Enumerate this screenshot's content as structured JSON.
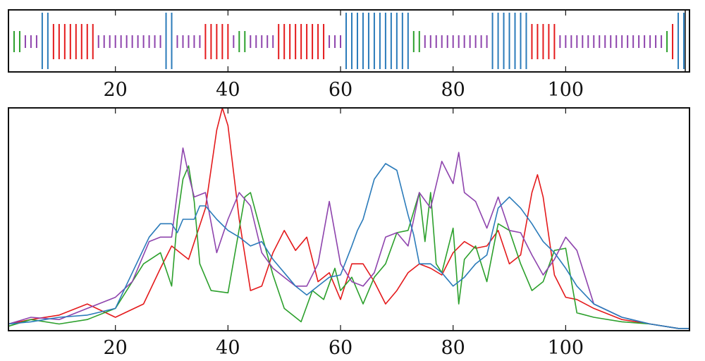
{
  "chart_data": [
    {
      "type": "heatmap",
      "xlim": [
        1,
        122
      ],
      "xticks": [
        20,
        40,
        60,
        80,
        100
      ],
      "xtick_labels": [
        "20",
        "40",
        "60",
        "80",
        "100"
      ],
      "colors": {
        "green": "#2ca02c",
        "purple": "#8e44ad",
        "blue": "#2b7bba",
        "red": "#e41a1c"
      },
      "segments": [
        {
          "start": 2,
          "end": 3,
          "class": "green"
        },
        {
          "start": 4,
          "end": 6,
          "class": "purple"
        },
        {
          "start": 7,
          "end": 8,
          "class": "blue"
        },
        {
          "start": 9,
          "end": 16,
          "class": "red"
        },
        {
          "start": 17,
          "end": 28,
          "class": "purple"
        },
        {
          "start": 29,
          "end": 30,
          "class": "blue"
        },
        {
          "start": 31,
          "end": 35,
          "class": "purple"
        },
        {
          "start": 36,
          "end": 40,
          "class": "red"
        },
        {
          "start": 41,
          "end": 41,
          "class": "purple"
        },
        {
          "start": 42,
          "end": 43,
          "class": "green"
        },
        {
          "start": 44,
          "end": 48,
          "class": "purple"
        },
        {
          "start": 49,
          "end": 57,
          "class": "red"
        },
        {
          "start": 58,
          "end": 60,
          "class": "purple"
        },
        {
          "start": 61,
          "end": 72,
          "class": "blue"
        },
        {
          "start": 73,
          "end": 74,
          "class": "green"
        },
        {
          "start": 75,
          "end": 86,
          "class": "purple"
        },
        {
          "start": 87,
          "end": 93,
          "class": "blue"
        },
        {
          "start": 94,
          "end": 98,
          "class": "red"
        },
        {
          "start": 99,
          "end": 117,
          "class": "purple"
        },
        {
          "start": 118,
          "end": 118,
          "class": "green"
        },
        {
          "start": 119,
          "end": 119,
          "class": "red"
        },
        {
          "start": 120,
          "end": 122,
          "class": "blue"
        }
      ],
      "boundary_marker_x": 121
    },
    {
      "type": "line",
      "xlim": [
        1,
        122
      ],
      "ylim": [
        0,
        1
      ],
      "xticks": [
        20,
        40,
        60,
        80,
        100
      ],
      "xtick_labels": [
        "20",
        "40",
        "60",
        "80",
        "100"
      ],
      "series": [
        {
          "color": "#e41a1c",
          "x": [
            1,
            5,
            10,
            15,
            20,
            25,
            28,
            30,
            33,
            36,
            38,
            39,
            40,
            42,
            44,
            46,
            48,
            50,
            52,
            54,
            56,
            58,
            60,
            62,
            64,
            66,
            68,
            70,
            72,
            74,
            76,
            78,
            80,
            82,
            84,
            86,
            88,
            90,
            92,
            94,
            95,
            96,
            98,
            100,
            102,
            105,
            110,
            115,
            120,
            122
          ],
          "y": [
            0.03,
            0.05,
            0.07,
            0.12,
            0.06,
            0.12,
            0.28,
            0.38,
            0.32,
            0.55,
            0.9,
            1.0,
            0.92,
            0.5,
            0.18,
            0.2,
            0.35,
            0.45,
            0.36,
            0.42,
            0.22,
            0.26,
            0.14,
            0.3,
            0.3,
            0.22,
            0.12,
            0.18,
            0.26,
            0.3,
            0.28,
            0.25,
            0.35,
            0.4,
            0.37,
            0.38,
            0.45,
            0.3,
            0.34,
            0.62,
            0.7,
            0.6,
            0.25,
            0.15,
            0.14,
            0.1,
            0.05,
            0.03,
            0.01,
            0.01
          ]
        },
        {
          "color": "#2ca02c",
          "x": [
            1,
            5,
            10,
            15,
            20,
            25,
            28,
            30,
            31,
            32,
            33,
            34,
            35,
            37,
            40,
            43,
            44,
            46,
            48,
            50,
            53,
            55,
            57,
            59,
            60,
            62,
            64,
            66,
            68,
            70,
            72,
            74,
            75,
            76,
            77,
            78,
            80,
            81,
            82,
            84,
            86,
            88,
            90,
            92,
            94,
            96,
            98,
            100,
            102,
            105,
            110,
            115,
            120,
            122
          ],
          "y": [
            0.02,
            0.05,
            0.03,
            0.05,
            0.1,
            0.3,
            0.35,
            0.2,
            0.5,
            0.68,
            0.74,
            0.58,
            0.3,
            0.18,
            0.17,
            0.6,
            0.62,
            0.43,
            0.25,
            0.1,
            0.04,
            0.18,
            0.14,
            0.28,
            0.18,
            0.24,
            0.12,
            0.24,
            0.3,
            0.44,
            0.45,
            0.62,
            0.4,
            0.62,
            0.3,
            0.26,
            0.46,
            0.12,
            0.32,
            0.38,
            0.22,
            0.48,
            0.45,
            0.3,
            0.18,
            0.22,
            0.36,
            0.37,
            0.08,
            0.06,
            0.04,
            0.03,
            0.01,
            0.01
          ]
        },
        {
          "color": "#8e44ad",
          "x": [
            1,
            5,
            10,
            15,
            20,
            23,
            26,
            28,
            30,
            32,
            33,
            34,
            36,
            38,
            40,
            42,
            44,
            46,
            48,
            50,
            52,
            54,
            56,
            58,
            60,
            62,
            64,
            66,
            68,
            70,
            72,
            74,
            76,
            78,
            80,
            81,
            82,
            84,
            86,
            88,
            90,
            92,
            94,
            96,
            98,
            100,
            102,
            105,
            110,
            115,
            120,
            122
          ],
          "y": [
            0.03,
            0.06,
            0.05,
            0.1,
            0.15,
            0.22,
            0.4,
            0.42,
            0.42,
            0.82,
            0.7,
            0.6,
            0.62,
            0.35,
            0.5,
            0.62,
            0.56,
            0.35,
            0.28,
            0.24,
            0.2,
            0.2,
            0.3,
            0.58,
            0.3,
            0.22,
            0.2,
            0.26,
            0.42,
            0.44,
            0.38,
            0.62,
            0.55,
            0.76,
            0.66,
            0.8,
            0.62,
            0.58,
            0.46,
            0.6,
            0.45,
            0.44,
            0.34,
            0.25,
            0.32,
            0.42,
            0.36,
            0.12,
            0.06,
            0.03,
            0.01,
            0.01
          ]
        },
        {
          "color": "#2b7bba",
          "x": [
            1,
            5,
            10,
            15,
            20,
            23,
            26,
            28,
            30,
            31,
            32,
            34,
            35,
            36,
            38,
            40,
            42,
            44,
            46,
            48,
            50,
            52,
            54,
            56,
            58,
            60,
            62,
            63,
            64,
            66,
            68,
            70,
            72,
            73,
            74,
            76,
            78,
            80,
            82,
            84,
            86,
            88,
            90,
            92,
            94,
            96,
            98,
            100,
            102,
            105,
            110,
            115,
            120,
            122
          ],
          "y": [
            0.03,
            0.04,
            0.06,
            0.07,
            0.1,
            0.26,
            0.42,
            0.48,
            0.48,
            0.44,
            0.5,
            0.5,
            0.56,
            0.56,
            0.5,
            0.45,
            0.42,
            0.38,
            0.4,
            0.32,
            0.26,
            0.2,
            0.16,
            0.2,
            0.24,
            0.25,
            0.38,
            0.45,
            0.5,
            0.68,
            0.75,
            0.72,
            0.52,
            0.43,
            0.3,
            0.3,
            0.26,
            0.2,
            0.24,
            0.3,
            0.34,
            0.55,
            0.6,
            0.55,
            0.48,
            0.4,
            0.35,
            0.28,
            0.2,
            0.12,
            0.06,
            0.03,
            0.01,
            0.01
          ]
        }
      ]
    }
  ]
}
